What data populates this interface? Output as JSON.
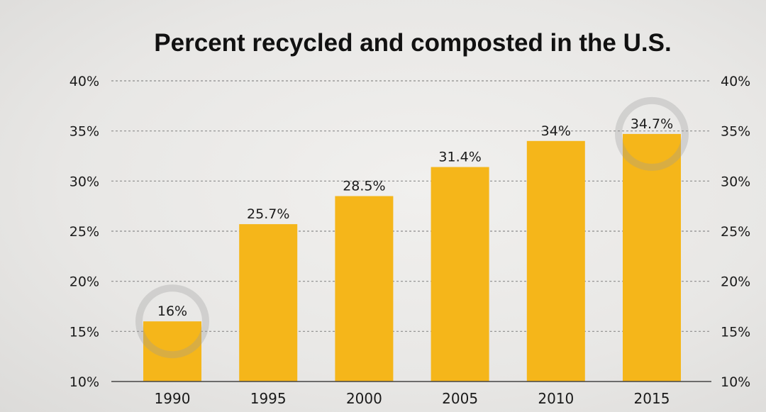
{
  "chart_data": {
    "type": "bar",
    "title": "Percent recycled and composted in the U.S.",
    "categories": [
      "1990",
      "1995",
      "2000",
      "2005",
      "2010",
      "2015"
    ],
    "values": [
      16,
      25.7,
      28.5,
      31.4,
      34,
      34.7
    ],
    "value_labels": [
      "16%",
      "25.7%",
      "28.5%",
      "31.4%",
      "34%",
      "34.7%"
    ],
    "ylim": [
      10,
      40
    ],
    "yticks": [
      10,
      15,
      20,
      25,
      30,
      35,
      40
    ],
    "ytick_labels": [
      "10%",
      "15%",
      "20%",
      "25%",
      "30%",
      "35%",
      "40%"
    ],
    "y_axis_sides": [
      "left",
      "right"
    ],
    "grid": "dashed horizontal",
    "highlighted_categories": [
      "1990",
      "2015"
    ],
    "colors": {
      "bar": "#f5b61a",
      "highlight_ring": "#9a9a9a",
      "gridline": "#8c8c8c",
      "axis": "#444444",
      "text": "#1a1a1a"
    }
  }
}
